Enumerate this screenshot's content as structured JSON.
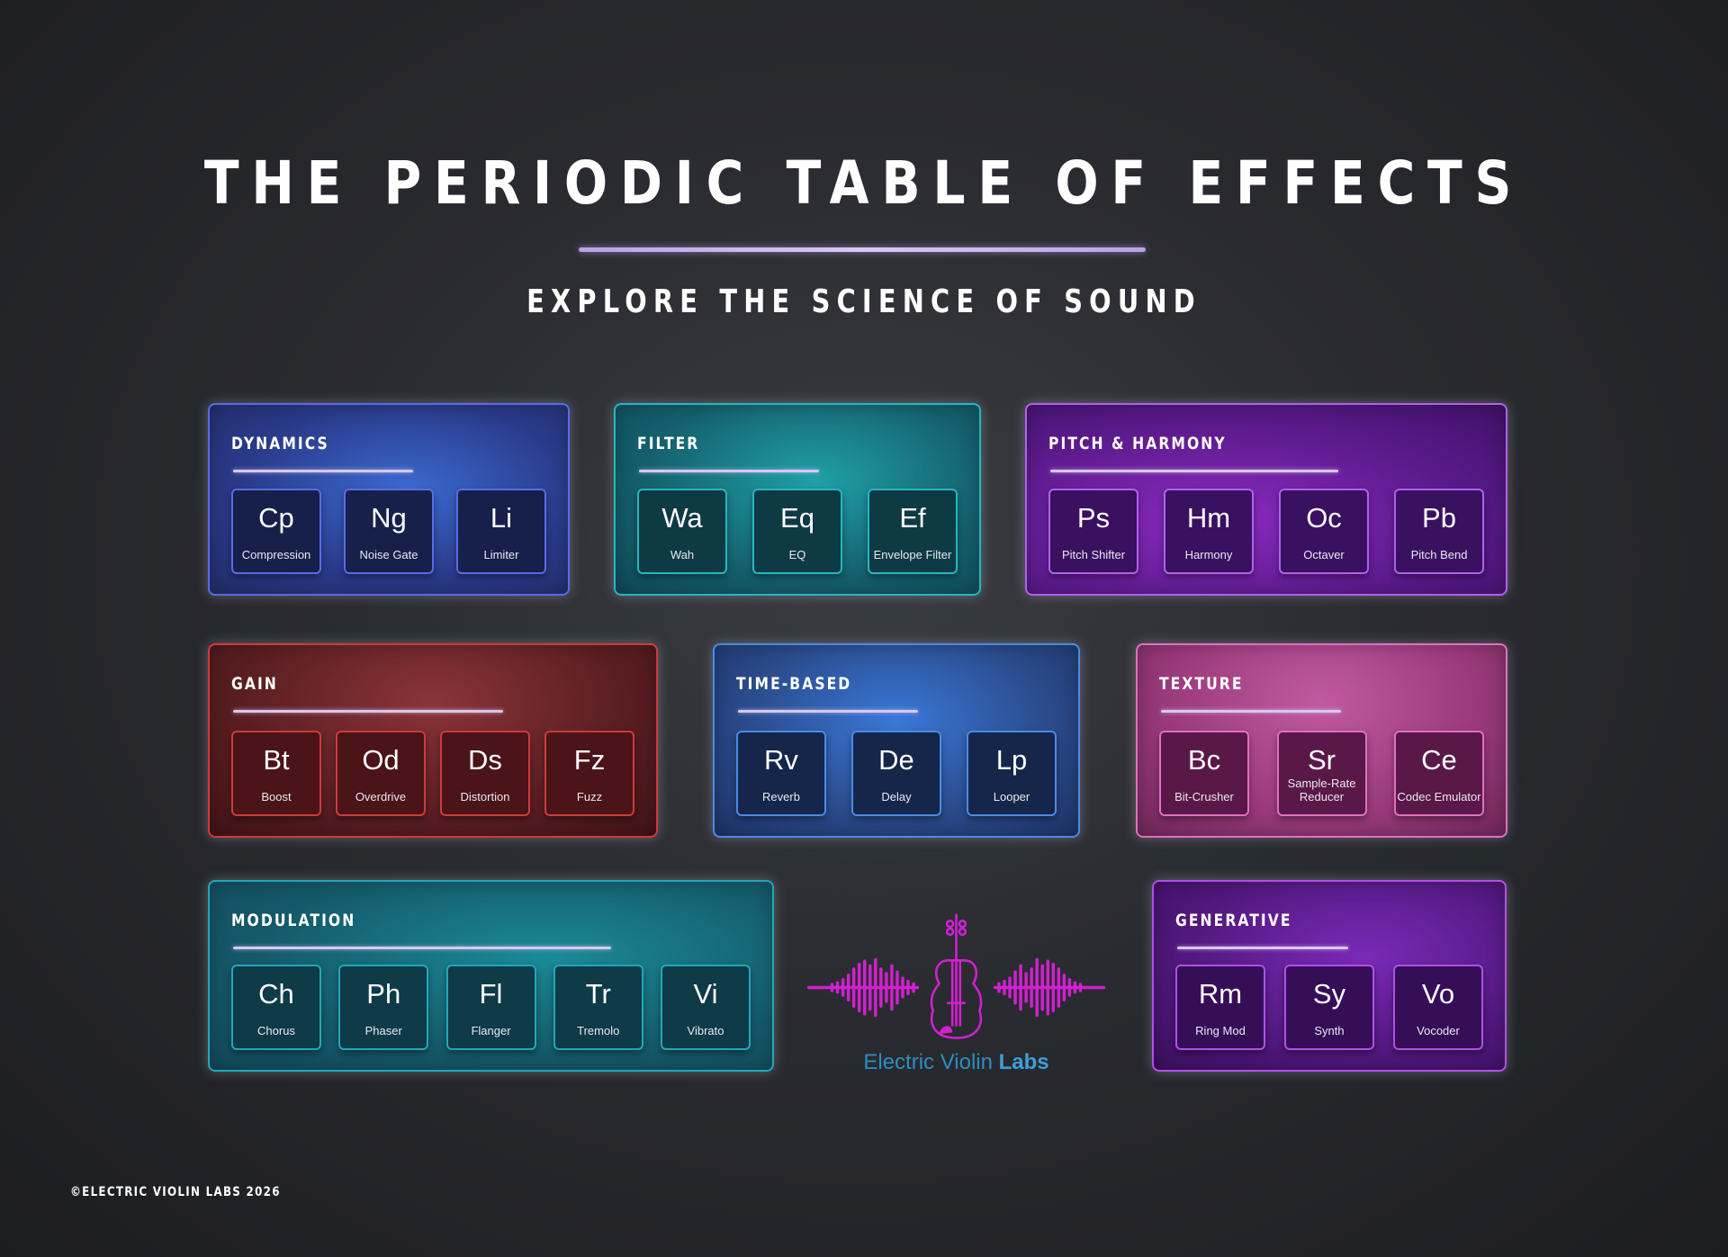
{
  "title": "THE PERIODIC TABLE OF EFFECTS",
  "subtitle": "EXPLORE THE SCIENCE OF SOUND",
  "groups": [
    {
      "name": "DYNAMICS",
      "color": "#5a6ae8",
      "elements": [
        {
          "symbol": "Cp",
          "name": "Compression"
        },
        {
          "symbol": "Ng",
          "name": "Noise Gate"
        },
        {
          "symbol": "Li",
          "name": "Limiter"
        }
      ]
    },
    {
      "name": "FILTER",
      "color": "#22b8c0",
      "elements": [
        {
          "symbol": "Wa",
          "name": "Wah"
        },
        {
          "symbol": "Eq",
          "name": "EQ"
        },
        {
          "symbol": "Ef",
          "name": "Envelope Filter"
        }
      ]
    },
    {
      "name": "PITCH & HARMONY",
      "color": "#b060f0",
      "elements": [
        {
          "symbol": "Ps",
          "name": "Pitch Shifter"
        },
        {
          "symbol": "Hm",
          "name": "Harmony"
        },
        {
          "symbol": "Oc",
          "name": "Octaver"
        },
        {
          "symbol": "Pb",
          "name": "Pitch Bend"
        }
      ]
    },
    {
      "name": "GAIN",
      "color": "#d03a3a",
      "elements": [
        {
          "symbol": "Bt",
          "name": "Boost"
        },
        {
          "symbol": "Od",
          "name": "Overdrive"
        },
        {
          "symbol": "Ds",
          "name": "Distortion"
        },
        {
          "symbol": "Fz",
          "name": "Fuzz"
        }
      ]
    },
    {
      "name": "TIME-BASED",
      "color": "#4a8ae8",
      "elements": [
        {
          "symbol": "Rv",
          "name": "Reverb"
        },
        {
          "symbol": "De",
          "name": "Delay"
        },
        {
          "symbol": "Lp",
          "name": "Looper"
        }
      ]
    },
    {
      "name": "TEXTURE",
      "color": "#e070c0",
      "elements": [
        {
          "symbol": "Bc",
          "name": "Bit-Crusher"
        },
        {
          "symbol": "Sr",
          "name": "Sample-Rate Reducer"
        },
        {
          "symbol": "Ce",
          "name": "Codec Emulator"
        }
      ]
    },
    {
      "name": "MODULATION",
      "color": "#20a8b8",
      "elements": [
        {
          "symbol": "Ch",
          "name": "Chorus"
        },
        {
          "symbol": "Ph",
          "name": "Phaser"
        },
        {
          "symbol": "Fl",
          "name": "Flanger"
        },
        {
          "symbol": "Tr",
          "name": "Tremolo"
        },
        {
          "symbol": "Vi",
          "name": "Vibrato"
        }
      ]
    },
    {
      "name": "GENERATIVE",
      "color": "#b050e8",
      "elements": [
        {
          "symbol": "Rm",
          "name": "Ring Mod"
        },
        {
          "symbol": "Sy",
          "name": "Synth"
        },
        {
          "symbol": "Vo",
          "name": "Vocoder"
        }
      ]
    }
  ],
  "logo": {
    "text_a": "Electric Violin ",
    "text_b": "Labs",
    "color": "#d020d0"
  },
  "footer": "©ELECTRIC VIOLIN LABS 2026"
}
